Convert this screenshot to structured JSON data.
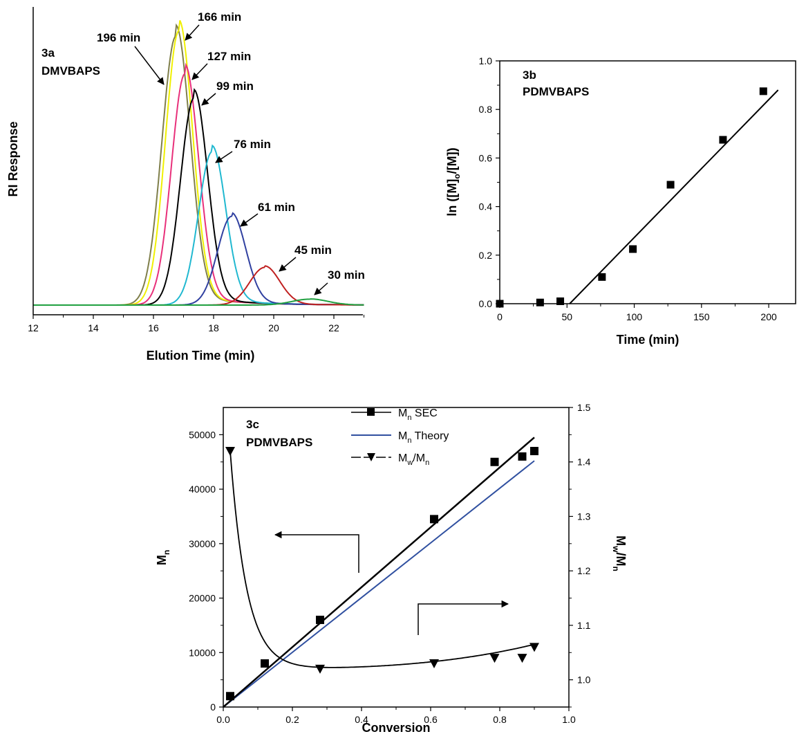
{
  "chart_data": [
    {
      "id": "3a",
      "type": "line",
      "panel_label": "3a",
      "panel_sublabel": "DMVBAPS",
      "xlabel": "Elution Time (min)",
      "ylabel": "RI Response",
      "xlim": [
        12,
        23
      ],
      "x_ticks": [
        "12",
        "14",
        "16",
        "18",
        "20",
        "22"
      ],
      "y_ticks": [],
      "series": [
        {
          "name": "196 min",
          "color": "#7f7f4a",
          "peak_x": 16.75,
          "height": 1.0,
          "sigma": 0.47
        },
        {
          "name": "166 min",
          "color": "#f0f000",
          "peak_x": 16.85,
          "height": 1.02,
          "sigma": 0.45
        },
        {
          "name": "127 min",
          "color": "#e8307a",
          "peak_x": 17.05,
          "height": 0.86,
          "sigma": 0.45
        },
        {
          "name": "99 min",
          "color": "#000000",
          "peak_x": 17.35,
          "height": 0.77,
          "sigma": 0.45
        },
        {
          "name": "76 min",
          "color": "#20b8d0",
          "peak_x": 17.95,
          "height": 0.57,
          "sigma": 0.45
        },
        {
          "name": "61 min",
          "color": "#3040a0",
          "peak_x": 18.6,
          "height": 0.33,
          "sigma": 0.47
        },
        {
          "name": "45 min",
          "color": "#c02020",
          "peak_x": 19.7,
          "height": 0.14,
          "sigma": 0.5
        },
        {
          "name": "30 min",
          "color": "#20a040",
          "peak_x": 21.2,
          "height": 0.022,
          "sigma": 0.6
        }
      ]
    },
    {
      "id": "3b",
      "type": "scatter",
      "panel_label": "3b",
      "panel_sublabel": "PDMVBAPS",
      "xlabel": "Time (min)",
      "ylabel": "ln ([M]o/[M])",
      "xlim": [
        0,
        220
      ],
      "ylim": [
        0,
        1.0
      ],
      "x_ticks": [
        "0",
        "50",
        "100",
        "150",
        "200"
      ],
      "y_ticks": [
        "0.0",
        "0.2",
        "0.4",
        "0.6",
        "0.8",
        "1.0"
      ],
      "points": [
        [
          0,
          0.0
        ],
        [
          30,
          0.005
        ],
        [
          45,
          0.01
        ],
        [
          76,
          0.11
        ],
        [
          99,
          0.225
        ],
        [
          127,
          0.49
        ],
        [
          166,
          0.675
        ],
        [
          196,
          0.875
        ]
      ],
      "fit_line": [
        [
          52,
          0.0
        ],
        [
          207,
          0.88
        ]
      ]
    },
    {
      "id": "3c",
      "type": "scatter",
      "panel_label": "3c",
      "panel_sublabel": "PDMVBAPS",
      "xlabel": "Conversion",
      "ylabel_left": "Mn",
      "ylabel_right": "Mw/Mn",
      "xlim": [
        0,
        1.0
      ],
      "ylim_left": [
        0,
        55000
      ],
      "ylim_right": [
        0.95,
        1.5
      ],
      "x_ticks": [
        "0.0",
        "0.2",
        "0.4",
        "0.6",
        "0.8",
        "1.0"
      ],
      "y_ticks_left": [
        "0",
        "10000",
        "20000",
        "30000",
        "40000",
        "50000"
      ],
      "y_ticks_right": [
        "1.0",
        "1.1",
        "1.2",
        "1.3",
        "1.4",
        "1.5"
      ],
      "legend": {
        "placement": "top-center",
        "entries": [
          "SEC",
          "Theory",
          "/"
        ]
      },
      "series": [
        {
          "name": "Mn SEC",
          "marker": "square",
          "color": "#000000",
          "x": [
            0.02,
            0.12,
            0.28,
            0.61,
            0.785,
            0.865,
            0.9
          ],
          "y": [
            2000,
            8000,
            16000,
            34500,
            45000,
            46000,
            47000
          ],
          "fit_line": [
            [
              0.0,
              0
            ],
            [
              0.9,
              49500
            ]
          ]
        },
        {
          "name": "Mn Theory",
          "marker": "none",
          "color": "#3050a0",
          "fit_line": [
            [
              0.0,
              0
            ],
            [
              0.9,
              45200
            ]
          ]
        },
        {
          "name": "Mw/Mn",
          "marker": "triangle-down",
          "color": "#000000",
          "x": [
            0.02,
            0.28,
            0.61,
            0.785,
            0.865,
            0.9
          ],
          "y": [
            1.42,
            1.02,
            1.03,
            1.04,
            1.04,
            1.06
          ]
        }
      ]
    }
  ]
}
